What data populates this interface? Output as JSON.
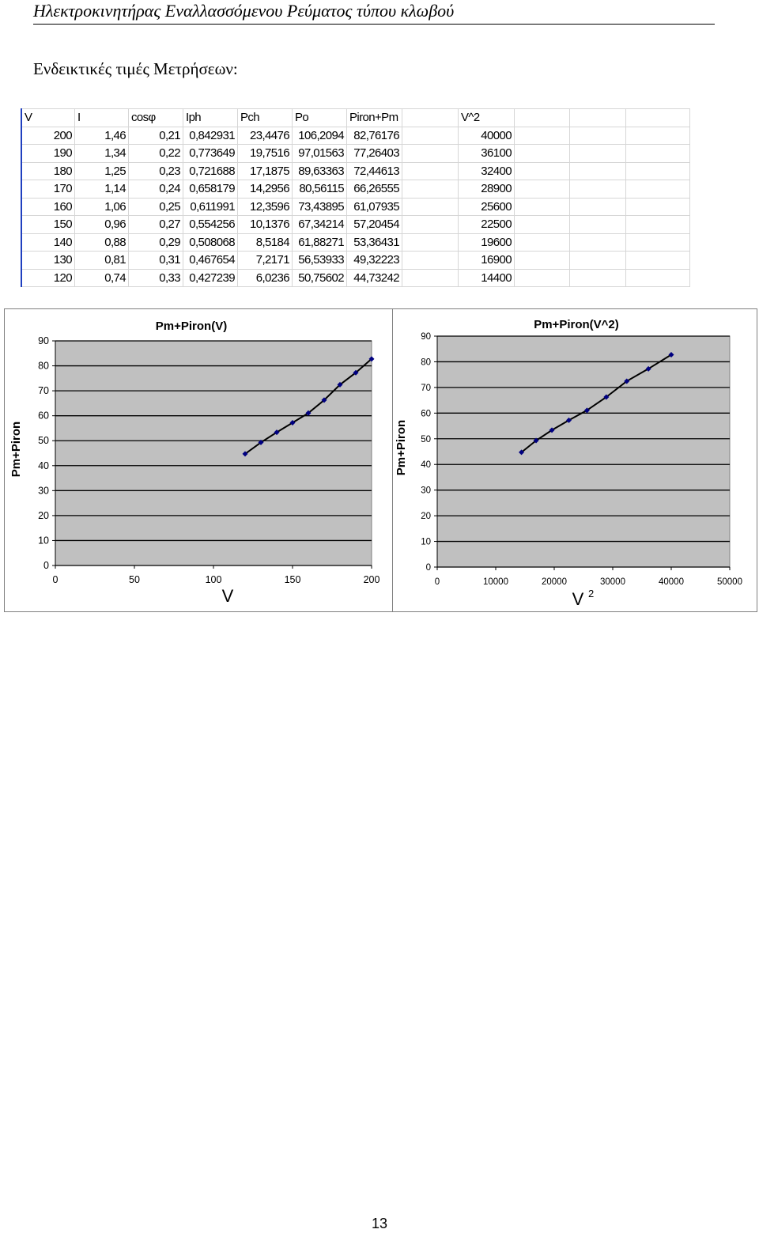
{
  "document": {
    "header": "Ηλεκτροκινητήρας Εναλλασσόμενου Ρεύματος τύπου κλωβού",
    "subtitle": "Ενδεικτικές τιμές Μετρήσεων:",
    "page_number": "13"
  },
  "table": {
    "headers": [
      "V",
      "I",
      "cosφ",
      "Iph",
      "Pch",
      "Po",
      "Piron+Pm",
      "V^2"
    ],
    "rows": [
      [
        "200",
        "1,46",
        "0,21",
        "0,842931",
        "23,4476",
        "106,2094",
        "82,76176",
        "40000"
      ],
      [
        "190",
        "1,34",
        "0,22",
        "0,773649",
        "19,7516",
        "97,01563",
        "77,26403",
        "36100"
      ],
      [
        "180",
        "1,25",
        "0,23",
        "0,721688",
        "17,1875",
        "89,63363",
        "72,44613",
        "32400"
      ],
      [
        "170",
        "1,14",
        "0,24",
        "0,658179",
        "14,2956",
        "80,56115",
        "66,26555",
        "28900"
      ],
      [
        "160",
        "1,06",
        "0,25",
        "0,611991",
        "12,3596",
        "73,43895",
        "61,07935",
        "25600"
      ],
      [
        "150",
        "0,96",
        "0,27",
        "0,554256",
        "10,1376",
        "67,34214",
        "57,20454",
        "22500"
      ],
      [
        "140",
        "0,88",
        "0,29",
        "0,508068",
        "8,5184",
        "61,88271",
        "53,36431",
        "19600"
      ],
      [
        "130",
        "0,81",
        "0,31",
        "0,467654",
        "7,2171",
        "56,53933",
        "49,32223",
        "16900"
      ],
      [
        "120",
        "0,74",
        "0,33",
        "0,427239",
        "6,0236",
        "50,75602",
        "44,73242",
        "14400"
      ]
    ]
  },
  "colors": {
    "plot_area": "#c0c0c0",
    "gridline": "#000000",
    "series_line": "#000000",
    "marker": "#000080",
    "sheet_grid": "#d6d6d6",
    "selection": "#1f3fbf"
  },
  "chart_data": [
    {
      "type": "line",
      "title": "Pm+Piron(V)",
      "xlabel": "V",
      "ylabel": "Pm+Piron",
      "xlim": [
        0,
        200
      ],
      "ylim": [
        0,
        90
      ],
      "xticks": [
        "0",
        "50",
        "100",
        "150",
        "200"
      ],
      "yticks": [
        "0",
        "10",
        "20",
        "30",
        "40",
        "50",
        "60",
        "70",
        "80",
        "90"
      ],
      "grid": true,
      "series": [
        {
          "x": [
            200,
            190,
            180,
            170,
            160,
            150,
            140,
            130,
            120
          ],
          "y": [
            82.76,
            77.26,
            72.45,
            66.27,
            61.08,
            57.2,
            53.36,
            49.32,
            44.73
          ]
        }
      ]
    },
    {
      "type": "line",
      "title": "Pm+Piron(V^2)",
      "xlabel": "V",
      "xlabel_sup": "2",
      "ylabel": "Pm+Piron",
      "xlim": [
        0,
        50000
      ],
      "ylim": [
        0,
        90
      ],
      "xticks": [
        "0",
        "10000",
        "20000",
        "30000",
        "40000",
        "50000"
      ],
      "yticks": [
        "0",
        "10",
        "20",
        "30",
        "40",
        "50",
        "60",
        "70",
        "80",
        "90"
      ],
      "grid": true,
      "series": [
        {
          "x": [
            40000,
            36100,
            32400,
            28900,
            25600,
            22500,
            19600,
            16900,
            14400
          ],
          "y": [
            82.76,
            77.26,
            72.45,
            66.27,
            61.08,
            57.2,
            53.36,
            49.32,
            44.73
          ]
        }
      ]
    }
  ]
}
